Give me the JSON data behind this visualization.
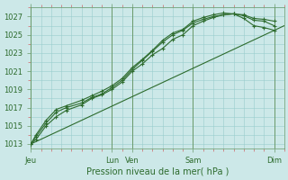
{
  "background_color": "#cce8e8",
  "plot_bg_color": "#cce8e8",
  "grid_color": "#99cccc",
  "line_color": "#2d6b2d",
  "xlabel": "Pression niveau de la mer( hPa )",
  "ylim": [
    1012.5,
    1028.0
  ],
  "yticks": [
    1013,
    1015,
    1017,
    1019,
    1021,
    1023,
    1025,
    1027
  ],
  "xtick_positions": [
    0,
    8,
    10,
    16,
    24
  ],
  "xtick_labels": [
    "Jeu",
    "Lun",
    "Ven",
    "Sam",
    "Dim"
  ],
  "xmax": 25,
  "trend_x": [
    0,
    25
  ],
  "trend_y": [
    1013.0,
    1026.0
  ],
  "line1_x": [
    0,
    0.5,
    1.5,
    2.5,
    3.5,
    5,
    6,
    7,
    8,
    9,
    10,
    11,
    12,
    13,
    14,
    15,
    16,
    17,
    18,
    19,
    20,
    21,
    22,
    23,
    24
  ],
  "line1_y": [
    1013.0,
    1014.0,
    1015.6,
    1016.8,
    1017.2,
    1017.8,
    1018.3,
    1018.8,
    1019.4,
    1020.2,
    1021.4,
    1022.3,
    1023.3,
    1024.4,
    1025.2,
    1025.6,
    1026.5,
    1026.9,
    1027.2,
    1027.4,
    1027.3,
    1027.2,
    1026.8,
    1026.7,
    1026.5
  ],
  "line2_x": [
    0,
    0.5,
    1.5,
    2.5,
    3.5,
    5,
    6,
    7,
    8,
    9,
    10,
    11,
    12,
    13,
    14,
    15,
    16,
    17,
    18,
    19,
    20,
    21,
    22,
    23,
    24
  ],
  "line2_y": [
    1013.0,
    1013.8,
    1015.3,
    1016.5,
    1017.0,
    1017.5,
    1018.1,
    1018.5,
    1019.2,
    1020.0,
    1021.2,
    1022.2,
    1023.2,
    1024.2,
    1025.0,
    1025.5,
    1026.3,
    1026.7,
    1027.0,
    1027.2,
    1027.3,
    1027.1,
    1026.6,
    1026.5,
    1026.0
  ],
  "line3_x": [
    0,
    0.5,
    1.5,
    2.5,
    3.5,
    5,
    6,
    7,
    8,
    9,
    10,
    11,
    12,
    13,
    14,
    15,
    16,
    17,
    18,
    19,
    20,
    21,
    22,
    23,
    24
  ],
  "line3_y": [
    1013.0,
    1013.5,
    1015.0,
    1016.0,
    1016.7,
    1017.3,
    1018.0,
    1018.4,
    1019.0,
    1019.8,
    1021.0,
    1021.8,
    1022.8,
    1023.5,
    1024.5,
    1025.0,
    1026.0,
    1026.5,
    1026.9,
    1027.2,
    1027.3,
    1026.8,
    1026.0,
    1025.8,
    1025.5
  ],
  "font_size_ticks": 6,
  "font_size_xlabel": 7,
  "marker_size": 3.0,
  "line_width": 0.8,
  "vline_color": "#557755",
  "vline_positions": [
    0,
    8,
    10,
    16,
    24
  ]
}
